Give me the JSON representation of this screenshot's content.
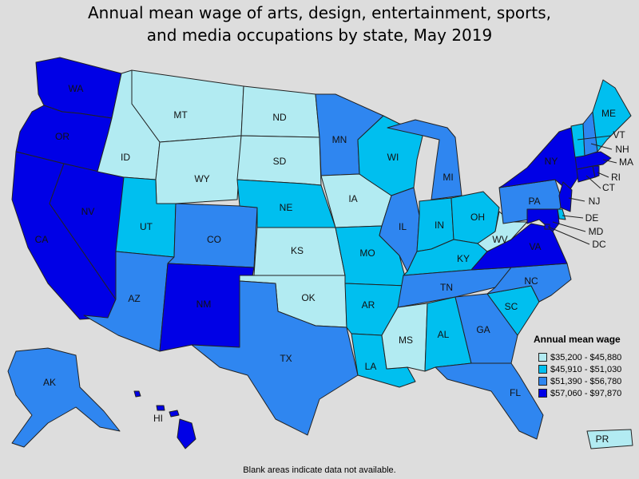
{
  "title_line1": "Annual mean wage of arts, design, entertainment, sports,",
  "title_line2": "and media occupations by state, May 2019",
  "colors": {
    "tier1": "#b2ebf2",
    "tier2": "#00bfef",
    "tier3": "#2f86f0",
    "tier4": "#0000e6"
  },
  "legend": {
    "title": "Annual mean wage",
    "items": [
      {
        "tier": "tier1",
        "label": "$35,200 - $45,880"
      },
      {
        "tier": "tier2",
        "label": "$45,910 - $51,030"
      },
      {
        "tier": "tier3",
        "label": "$51,390 - $56,780"
      },
      {
        "tier": "tier4",
        "label": "$57,060 - $97,870"
      }
    ]
  },
  "states": {
    "WA": {
      "tier": "tier4"
    },
    "OR": {
      "tier": "tier4"
    },
    "CA": {
      "tier": "tier4"
    },
    "NV": {
      "tier": "tier4"
    },
    "ID": {
      "tier": "tier1"
    },
    "MT": {
      "tier": "tier1"
    },
    "WY": {
      "tier": "tier1"
    },
    "UT": {
      "tier": "tier2"
    },
    "AZ": {
      "tier": "tier3"
    },
    "CO": {
      "tier": "tier3"
    },
    "NM": {
      "tier": "tier4"
    },
    "ND": {
      "tier": "tier1"
    },
    "SD": {
      "tier": "tier1"
    },
    "NE": {
      "tier": "tier2"
    },
    "KS": {
      "tier": "tier1"
    },
    "OK": {
      "tier": "tier1"
    },
    "TX": {
      "tier": "tier3"
    },
    "MN": {
      "tier": "tier3"
    },
    "IA": {
      "tier": "tier1"
    },
    "MO": {
      "tier": "tier2"
    },
    "AR": {
      "tier": "tier2"
    },
    "LA": {
      "tier": "tier2"
    },
    "WI": {
      "tier": "tier2"
    },
    "IL": {
      "tier": "tier3"
    },
    "MI": {
      "tier": "tier3"
    },
    "IN": {
      "tier": "tier2"
    },
    "OH": {
      "tier": "tier2"
    },
    "KY": {
      "tier": "tier2"
    },
    "TN": {
      "tier": "tier3"
    },
    "MS": {
      "tier": "tier1"
    },
    "AL": {
      "tier": "tier2"
    },
    "GA": {
      "tier": "tier3"
    },
    "FL": {
      "tier": "tier3"
    },
    "SC": {
      "tier": "tier2"
    },
    "NC": {
      "tier": "tier3"
    },
    "VA": {
      "tier": "tier4"
    },
    "WV": {
      "tier": "tier1"
    },
    "PA": {
      "tier": "tier3"
    },
    "NY": {
      "tier": "tier4"
    },
    "ME": {
      "tier": "tier2"
    },
    "VT": {
      "tier": "tier2"
    },
    "NH": {
      "tier": "tier3"
    },
    "MA": {
      "tier": "tier4"
    },
    "CT": {
      "tier": "tier4"
    },
    "RI": {
      "tier": "tier4"
    },
    "NJ": {
      "tier": "tier4"
    },
    "DE": {
      "tier": "tier2"
    },
    "MD": {
      "tier": "tier4"
    },
    "DC": {
      "tier": "tier4"
    },
    "AK": {
      "tier": "tier3"
    },
    "HI": {
      "tier": "tier4"
    },
    "PR": {
      "tier": "tier1"
    }
  },
  "footnote": "Blank areas indicate data not available."
}
